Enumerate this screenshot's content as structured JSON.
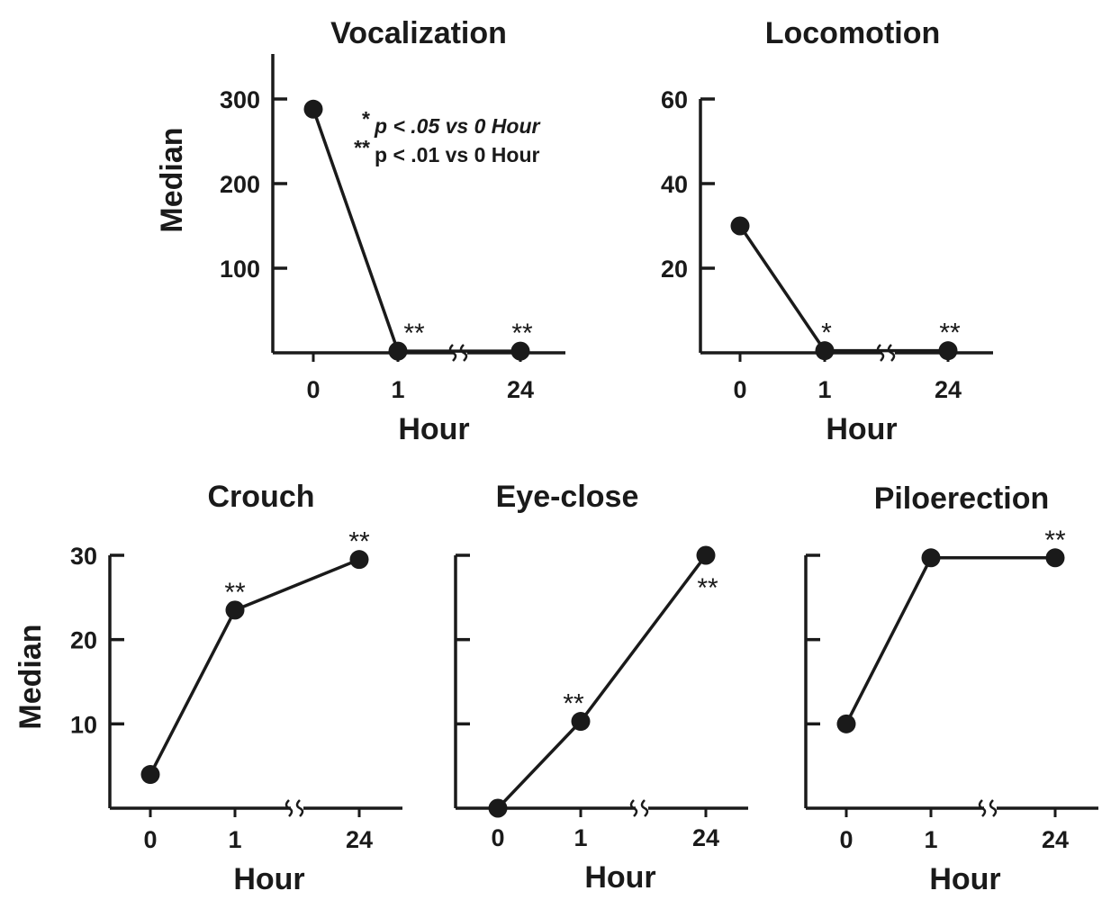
{
  "legend": {
    "line1_stars": "*",
    "line1_text": "p < .05 vs 0 Hour",
    "line2_stars": "**",
    "line2_text": "p < .01 vs 0 Hour"
  },
  "chart_data": [
    {
      "type": "line",
      "title": "Vocalization",
      "xlabel": "Hour",
      "ylabel": "Median",
      "categories": [
        "0",
        "1",
        "24"
      ],
      "values": [
        288,
        2,
        2
      ],
      "annotations": [
        "",
        "**",
        "**"
      ],
      "yticks": [
        100,
        200,
        300
      ],
      "ytick_labels": [
        "100",
        "200",
        "300"
      ],
      "ylim": [
        0,
        350
      ],
      "axis_break": "between 1 and 24",
      "legend_position": "top-right"
    },
    {
      "type": "line",
      "title": "Locomotion",
      "xlabel": "Hour",
      "ylabel": "",
      "categories": [
        "0",
        "1",
        "24"
      ],
      "values": [
        30,
        0.5,
        0.5
      ],
      "annotations": [
        "",
        "*",
        "**"
      ],
      "yticks": [
        20,
        40,
        60
      ],
      "ytick_labels": [
        "20",
        "40",
        "60"
      ],
      "ylim": [
        0,
        60
      ],
      "axis_break": "between 1 and 24"
    },
    {
      "type": "line",
      "title": "Crouch",
      "xlabel": "Hour",
      "ylabel": "Median",
      "categories": [
        "0",
        "1",
        "24"
      ],
      "values": [
        4,
        23.5,
        29.5
      ],
      "annotations": [
        "",
        "**",
        "**"
      ],
      "yticks": [
        10,
        20,
        30
      ],
      "ytick_labels": [
        "10",
        "20",
        "30"
      ],
      "ylim": [
        0,
        30
      ],
      "axis_break": "between 1 and 24"
    },
    {
      "type": "line",
      "title": "Eye-close",
      "xlabel": "Hour",
      "ylabel": "",
      "categories": [
        "0",
        "1",
        "24"
      ],
      "values": [
        0,
        10.3,
        30
      ],
      "annotations": [
        "",
        "**",
        "**"
      ],
      "yticks": [
        10,
        20,
        30
      ],
      "ytick_labels": [
        "",
        "",
        ""
      ],
      "ylim": [
        0,
        30
      ],
      "axis_break": "between 1 and 24"
    },
    {
      "type": "line",
      "title": "Piloerection",
      "xlabel": "Hour",
      "ylabel": "",
      "categories": [
        "0",
        "1",
        "24"
      ],
      "values": [
        10,
        29.7,
        29.7
      ],
      "annotations": [
        "",
        "",
        "**"
      ],
      "yticks": [
        10,
        20,
        30
      ],
      "ytick_labels": [
        "",
        "",
        ""
      ],
      "ylim": [
        0,
        30
      ],
      "axis_break": "between 1 and 24"
    }
  ]
}
